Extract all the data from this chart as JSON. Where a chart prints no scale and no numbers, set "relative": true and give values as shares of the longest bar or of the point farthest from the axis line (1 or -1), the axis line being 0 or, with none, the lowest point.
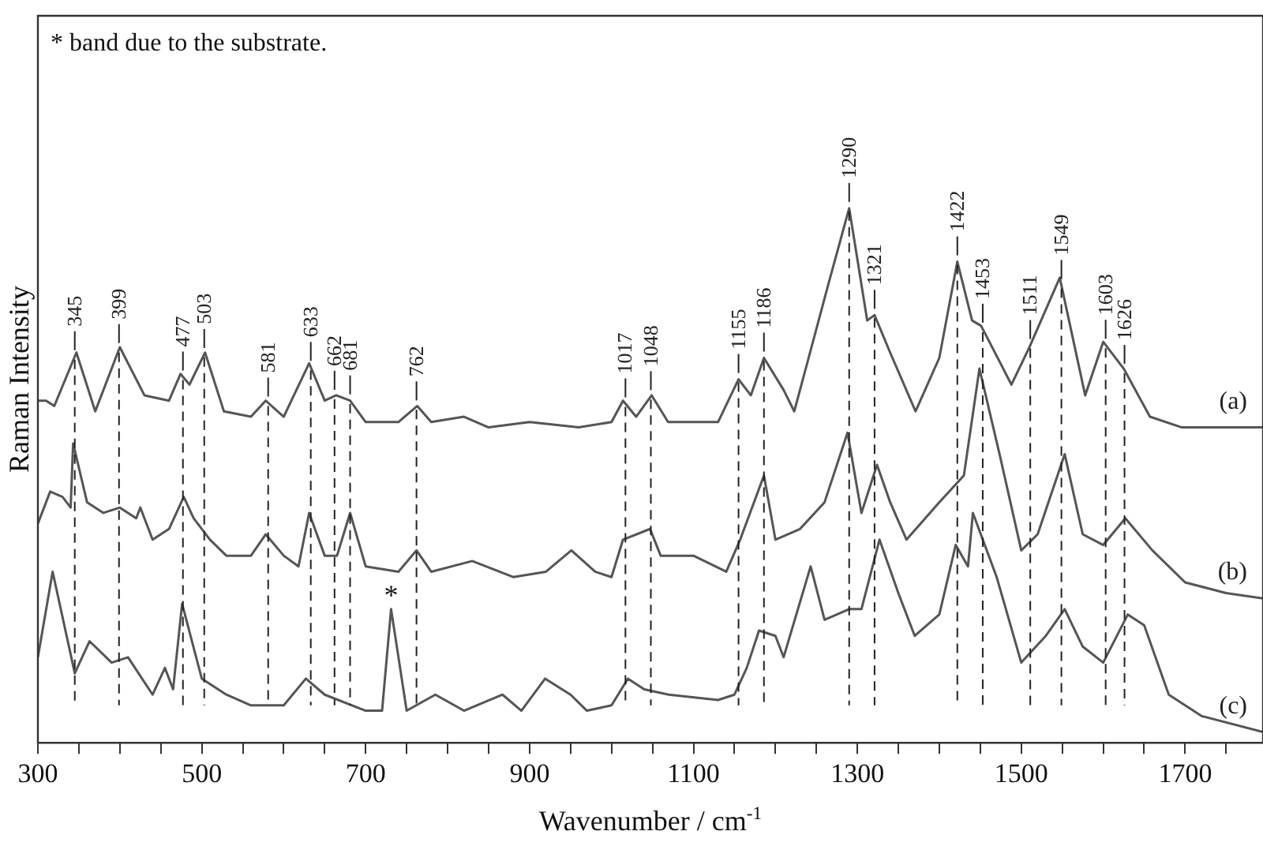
{
  "chart_data": {
    "type": "line",
    "xlabel": "Wavenumber / cm$^{-1}$",
    "ylabel": "Raman Intensity",
    "relative": true,
    "xlim": [
      300,
      1795
    ],
    "xticks": [
      300,
      {
        "value": 350,
        "label": null
      },
      {
        "value": 400,
        "label": null
      },
      {
        "value": 450,
        "label": null
      },
      500,
      {
        "value": 550,
        "label": null
      },
      {
        "value": 600,
        "label": null
      },
      {
        "value": 650,
        "label": null
      },
      700,
      {
        "value": 750,
        "label": null
      },
      {
        "value": 800,
        "label": null
      },
      {
        "value": 850,
        "label": null
      },
      900,
      {
        "value": 950,
        "label": null
      },
      {
        "value": 1000,
        "label": null
      },
      {
        "value": 1050,
        "label": null
      },
      1100,
      {
        "value": 1150,
        "label": null
      },
      {
        "value": 1200,
        "label": null
      },
      {
        "value": 1250,
        "label": null
      },
      1300,
      {
        "value": 1350,
        "label": null
      },
      {
        "value": 1400,
        "label": null
      },
      {
        "value": 1450,
        "label": null
      },
      1500,
      {
        "value": 1550,
        "label": null
      },
      {
        "value": 1600,
        "label": null
      },
      {
        "value": 1650,
        "label": null
      },
      1700,
      {
        "value": 1750,
        "label": null
      }
    ],
    "grid": false,
    "legend": false,
    "marker": "none",
    "line_style": "solid",
    "series": [
      {
        "name": "(a)",
        "color": "#555555",
        "x": [
          300,
          310,
          320,
          347,
          370,
          400,
          430,
          460,
          474,
          485,
          504,
          527,
          560,
          578,
          600,
          631,
          650,
          664,
          681,
          700,
          740,
          763,
          780,
          820,
          850,
          900,
          960,
          1000,
          1014,
          1030,
          1049,
          1069,
          1130,
          1155,
          1170,
          1186,
          1210,
          1223,
          1265,
          1290,
          1312,
          1321,
          1340,
          1371,
          1400,
          1422,
          1440,
          1451,
          1488,
          1510,
          1547,
          1578,
          1600,
          1625,
          1657,
          1696,
          1795
        ],
        "values": [
          0.64,
          0.64,
          0.63,
          0.73,
          0.62,
          0.74,
          0.65,
          0.64,
          0.69,
          0.67,
          0.73,
          0.62,
          0.61,
          0.64,
          0.61,
          0.71,
          0.64,
          0.65,
          0.64,
          0.6,
          0.6,
          0.63,
          0.6,
          0.61,
          0.59,
          0.6,
          0.59,
          0.6,
          0.64,
          0.61,
          0.65,
          0.6,
          0.6,
          0.68,
          0.65,
          0.72,
          0.66,
          0.62,
          0.86,
          1.0,
          0.79,
          0.8,
          0.73,
          0.62,
          0.72,
          0.9,
          0.79,
          0.78,
          0.67,
          0.74,
          0.87,
          0.65,
          0.75,
          0.7,
          0.61,
          0.59,
          0.59
        ]
      },
      {
        "name": "(b)",
        "color": "#555555",
        "x": [
          300,
          315,
          330,
          340,
          343,
          360,
          380,
          400,
          420,
          425,
          440,
          460,
          478,
          490,
          510,
          530,
          560,
          578,
          600,
          618,
          631,
          650,
          665,
          681,
          700,
          740,
          762,
          780,
          830,
          880,
          920,
          951,
          980,
          1000,
          1014,
          1047,
          1060,
          1100,
          1140,
          1157,
          1186,
          1200,
          1230,
          1260,
          1288,
          1305,
          1324,
          1340,
          1360,
          1400,
          1430,
          1449,
          1475,
          1500,
          1520,
          1553,
          1575,
          1600,
          1627,
          1660,
          1700,
          1750,
          1795
        ],
        "values": [
          0.41,
          0.47,
          0.46,
          0.44,
          0.56,
          0.45,
          0.43,
          0.44,
          0.42,
          0.44,
          0.38,
          0.4,
          0.46,
          0.42,
          0.38,
          0.35,
          0.35,
          0.39,
          0.35,
          0.33,
          0.43,
          0.35,
          0.35,
          0.43,
          0.33,
          0.32,
          0.36,
          0.32,
          0.34,
          0.31,
          0.32,
          0.36,
          0.32,
          0.31,
          0.38,
          0.4,
          0.35,
          0.35,
          0.32,
          0.38,
          0.5,
          0.38,
          0.4,
          0.45,
          0.58,
          0.43,
          0.52,
          0.45,
          0.38,
          0.45,
          0.5,
          0.7,
          0.53,
          0.36,
          0.39,
          0.54,
          0.39,
          0.37,
          0.42,
          0.36,
          0.3,
          0.28,
          0.27
        ]
      },
      {
        "name": "(c)",
        "color": "#555555",
        "x": [
          300,
          318,
          345,
          363,
          390,
          410,
          440,
          455,
          465,
          476,
          500,
          530,
          560,
          600,
          627,
          650,
          700,
          720,
          731,
          750,
          785,
          820,
          867,
          890,
          919,
          950,
          970,
          1000,
          1020,
          1040,
          1070,
          1130,
          1150,
          1165,
          1180,
          1200,
          1210,
          1243,
          1260,
          1290,
          1305,
          1327,
          1350,
          1370,
          1400,
          1420,
          1435,
          1441,
          1470,
          1500,
          1530,
          1553,
          1575,
          1600,
          1630,
          1650,
          1680,
          1720,
          1795
        ],
        "values": [
          0.16,
          0.32,
          0.13,
          0.19,
          0.15,
          0.16,
          0.09,
          0.14,
          0.1,
          0.26,
          0.12,
          0.09,
          0.07,
          0.07,
          0.12,
          0.09,
          0.06,
          0.06,
          0.25,
          0.06,
          0.09,
          0.06,
          0.09,
          0.06,
          0.12,
          0.09,
          0.06,
          0.07,
          0.12,
          0.1,
          0.09,
          0.08,
          0.09,
          0.14,
          0.21,
          0.2,
          0.16,
          0.33,
          0.23,
          0.25,
          0.25,
          0.38,
          0.28,
          0.2,
          0.24,
          0.37,
          0.33,
          0.43,
          0.31,
          0.15,
          0.2,
          0.25,
          0.18,
          0.15,
          0.24,
          0.22,
          0.09,
          0.05,
          0.02
        ]
      }
    ],
    "ref_lines": [
      {
        "axis": "x",
        "value": 345,
        "label": "345",
        "line_style": "dashed"
      },
      {
        "axis": "x",
        "value": 399,
        "label": "399",
        "line_style": "dashed"
      },
      {
        "axis": "x",
        "value": 477,
        "label": "477",
        "line_style": "dashed"
      },
      {
        "axis": "x",
        "value": 503,
        "label": "503",
        "line_style": "dashed"
      },
      {
        "axis": "x",
        "value": 581,
        "label": "581",
        "line_style": "dashed"
      },
      {
        "axis": "x",
        "value": 633,
        "label": "633",
        "line_style": "dashed"
      },
      {
        "axis": "x",
        "value": 662,
        "label": "662",
        "line_style": "dashed"
      },
      {
        "axis": "x",
        "value": 681,
        "label": "681",
        "line_style": "dashed"
      },
      {
        "axis": "x",
        "value": 762,
        "label": "762",
        "line_style": "dashed"
      },
      {
        "axis": "x",
        "value": 1017,
        "label": "1017",
        "line_style": "dashed"
      },
      {
        "axis": "x",
        "value": 1048,
        "label": "1048",
        "line_style": "dashed"
      },
      {
        "axis": "x",
        "value": 1155,
        "label": "1155",
        "line_style": "dashed"
      },
      {
        "axis": "x",
        "value": 1186,
        "label": "1186",
        "line_style": "dashed"
      },
      {
        "axis": "x",
        "value": 1290,
        "label": "1290",
        "line_style": "dashed"
      },
      {
        "axis": "x",
        "value": 1321,
        "label": "1321",
        "line_style": "dashed"
      },
      {
        "axis": "x",
        "value": 1422,
        "label": "1422",
        "line_style": "dashed"
      },
      {
        "axis": "x",
        "value": 1453,
        "label": "1453",
        "line_style": "dashed"
      },
      {
        "axis": "x",
        "value": 1511,
        "label": "1511",
        "line_style": "dashed"
      },
      {
        "axis": "x",
        "value": 1549,
        "label": "1549",
        "line_style": "dashed"
      },
      {
        "axis": "x",
        "value": 1603,
        "label": "1603",
        "line_style": "dashed"
      },
      {
        "axis": "x",
        "value": 1626,
        "label": "1626",
        "line_style": "dashed"
      }
    ],
    "annotations": [
      "* band due to the substrate.",
      {
        "text": "*",
        "x": 731,
        "y": 0.25
      }
    ]
  }
}
